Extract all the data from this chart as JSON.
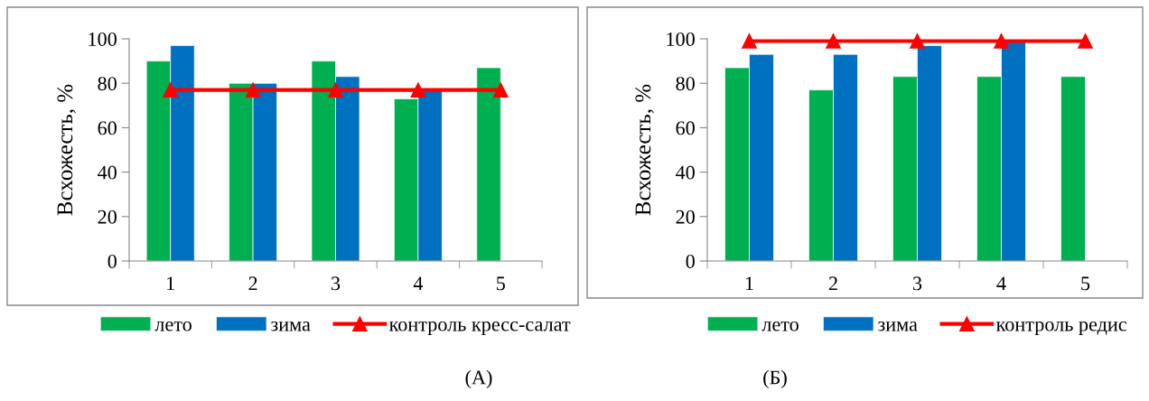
{
  "chart_data": [
    {
      "type": "bar",
      "categories": [
        "1",
        "2",
        "3",
        "4",
        "5"
      ],
      "ylabel": "Всхожесть, %",
      "ylim": [
        0,
        100
      ],
      "yticks": [
        0,
        20,
        40,
        60,
        80,
        100
      ],
      "grid": false,
      "legend": "bottom",
      "annotations": [
        "(А)"
      ],
      "series": [
        {
          "name": "лето",
          "color": "#00b050",
          "values": [
            90,
            80,
            90,
            73,
            87
          ]
        },
        {
          "name": "зима",
          "color": "#0070c0",
          "values": [
            97,
            80,
            83,
            77,
            null
          ]
        },
        {
          "name": "контроль кресс-салат",
          "type": "line",
          "color": "#ff0000",
          "marker": "triangle",
          "values": [
            77,
            77,
            77,
            77,
            77
          ]
        }
      ]
    },
    {
      "type": "bar",
      "categories": [
        "1",
        "2",
        "3",
        "4",
        "5"
      ],
      "ylabel": "Всхожесть, %",
      "ylim": [
        0,
        100
      ],
      "yticks": [
        0,
        20,
        40,
        60,
        80,
        100
      ],
      "grid": false,
      "legend": "bottom",
      "annotations": [
        "(Б)"
      ],
      "series": [
        {
          "name": "лето",
          "color": "#00b050",
          "values": [
            87,
            77,
            83,
            83,
            83
          ]
        },
        {
          "name": "зима",
          "color": "#0070c0",
          "values": [
            93,
            93,
            97,
            99,
            null
          ]
        },
        {
          "name": "контроль редис",
          "type": "line",
          "color": "#ff0000",
          "marker": "triangle",
          "values": [
            99,
            99,
            99,
            99,
            99
          ]
        }
      ]
    }
  ]
}
